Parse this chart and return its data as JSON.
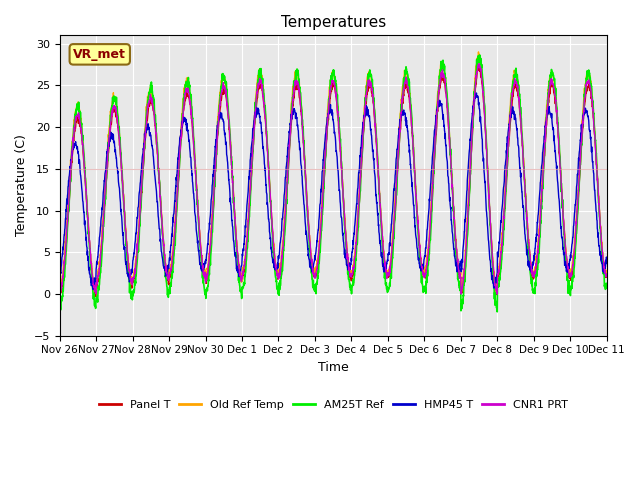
{
  "title": "Temperatures",
  "xlabel": "Time",
  "ylabel": "Temperature (C)",
  "ylim": [
    -5,
    31
  ],
  "yticks": [
    -5,
    0,
    5,
    10,
    15,
    20,
    25,
    30
  ],
  "bg_color": "#e8e8e8",
  "annotation_label": "VR_met",
  "annotation_box_color": "#ffff99",
  "annotation_box_edgecolor": "#8b6914",
  "annotation_text_color": "#8b0000",
  "series_names": [
    "Panel T",
    "Old Ref Temp",
    "AM25T Ref",
    "HMP45 T",
    "CNR1 PRT"
  ],
  "series_colors": [
    "#cc0000",
    "#ffa500",
    "#00ee00",
    "#0000cc",
    "#cc00cc"
  ],
  "series_lw": [
    1.0,
    1.0,
    1.2,
    1.0,
    1.0
  ],
  "xtick_labels": [
    "Nov 26",
    "Nov 27",
    "Nov 28",
    "Nov 29",
    "Nov 30",
    "Dec 1",
    "Dec 2",
    "Dec 3",
    "Dec 4",
    "Dec 5",
    "Dec 6",
    "Dec 7",
    "Dec 8",
    "Dec 9",
    "Dec 10",
    "Dec 11"
  ],
  "num_days": 15,
  "points_per_day": 144,
  "max_by_day": [
    21,
    22,
    23,
    24,
    24.5,
    25,
    25,
    25,
    25,
    25,
    26,
    27,
    25,
    25,
    25
  ],
  "min_by_day": [
    0,
    1,
    1.5,
    2,
    1.5,
    2,
    2,
    2,
    2,
    2,
    2,
    0,
    2,
    2,
    2
  ]
}
